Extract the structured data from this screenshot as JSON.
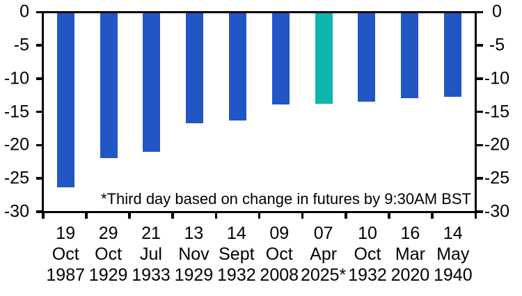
{
  "chart_data": {
    "type": "bar",
    "title": "",
    "categories": [
      "19 Oct 1987",
      "29 Oct 1929",
      "21 Jul 1933",
      "13 Nov 1929",
      "14 Sept 1932",
      "09 Oct 2008",
      "07 Apr 2025*",
      "10 Oct 1932",
      "16 Mar 2020",
      "14 May 1940"
    ],
    "categories_lines": [
      [
        "19",
        "Oct",
        "1987"
      ],
      [
        "29",
        "Oct",
        "1929"
      ],
      [
        "21",
        "Jul",
        "1933"
      ],
      [
        "13",
        "Nov",
        "1929"
      ],
      [
        "14",
        "Sept",
        "1932"
      ],
      [
        "09",
        "Oct",
        "2008"
      ],
      [
        "07",
        "Apr",
        "2025*"
      ],
      [
        "10",
        "Oct",
        "1932"
      ],
      [
        "16",
        "Mar",
        "2020"
      ],
      [
        "14",
        "May",
        "1940"
      ]
    ],
    "values": [
      -26.5,
      -22.0,
      -21.1,
      -16.7,
      -16.3,
      -13.9,
      -13.8,
      -13.5,
      -12.9,
      -12.7
    ],
    "highlight_index": 6,
    "highlight_category": "07 Apr 2025*",
    "ylim": [
      -30,
      0
    ],
    "yticks": [
      0,
      -5,
      -10,
      -15,
      -20,
      -25,
      -30
    ],
    "ytick_labels": [
      "0",
      "-5",
      "-10",
      "-15",
      "-20",
      "-25",
      "-30"
    ],
    "grid": false,
    "legend": false,
    "annotation": "*Third day based on change in futures by 9:30AM BST",
    "colors": {
      "bar": "#2256C5",
      "highlight": "#0CB6AC",
      "axis": "#000000",
      "text": "#000000",
      "background": "#FFFFFF"
    }
  }
}
